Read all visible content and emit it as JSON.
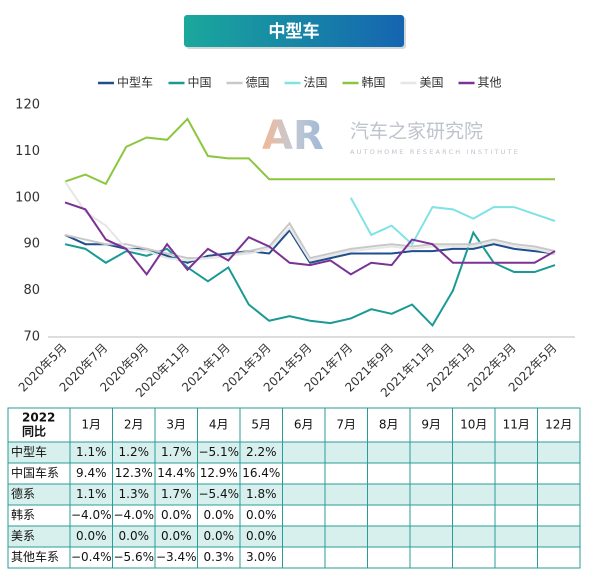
{
  "chart_data": {
    "type": "line",
    "title": "中型车",
    "categories": [
      "2020年5月",
      null,
      "2020年7月",
      null,
      "2020年9月",
      null,
      "2020年11月",
      null,
      "2021年1月",
      null,
      "2021年3月",
      null,
      "2021年5月",
      null,
      "2021年7月",
      null,
      "2021年9月",
      null,
      "2021年11月",
      null,
      "2022年1月",
      null,
      "2022年3月",
      null,
      "2022年5月"
    ],
    "series": [
      {
        "name": "中型车",
        "color": "#1f4e8c",
        "values": [
          92,
          90,
          90,
          89,
          89,
          87.5,
          86,
          87.5,
          88,
          88.5,
          88,
          93,
          86,
          87,
          88,
          88,
          88,
          88.5,
          88.5,
          89,
          89,
          90,
          89,
          88.5,
          88
        ]
      },
      {
        "name": "中国",
        "color": "#1a9a95",
        "values": [
          90,
          89,
          86,
          88.5,
          87.5,
          89,
          85,
          82,
          85,
          77,
          73.5,
          74.5,
          73.5,
          73,
          74,
          76,
          75,
          77,
          72.5,
          80,
          92.5,
          86,
          84,
          84,
          85.5
        ]
      },
      {
        "name": "德国",
        "color": "#c8c8c8",
        "values": [
          92,
          91,
          90,
          90,
          89,
          88,
          87,
          87,
          87.5,
          88.5,
          89.5,
          94.5,
          87,
          88,
          89,
          89.5,
          90,
          89.5,
          90,
          90,
          90,
          91,
          90,
          89.5,
          88.5
        ]
      },
      {
        "name": "法国",
        "color": "#7fe3e6",
        "values": [
          null,
          null,
          null,
          null,
          null,
          null,
          null,
          null,
          null,
          null,
          null,
          null,
          null,
          null,
          100,
          92,
          94,
          90,
          98,
          97.5,
          95.5,
          98,
          98,
          96.5,
          95
        ]
      },
      {
        "name": "韩国",
        "color": "#8cc63f",
        "values": [
          103.5,
          105,
          103,
          111,
          113,
          112.5,
          117,
          109,
          108.5,
          108.5,
          104,
          104,
          104,
          104,
          104,
          104,
          104,
          104,
          104,
          104,
          104,
          104,
          104,
          104,
          104
        ]
      },
      {
        "name": "美国",
        "color": "#e6e6e6",
        "values": [
          103.5,
          97,
          94,
          89,
          88.5,
          87,
          86.5,
          87,
          87.5,
          88,
          89,
          93.5,
          86.5,
          87.5,
          88.5,
          89,
          89.5,
          89,
          89.5,
          89.5,
          89.5,
          90.5,
          89.5,
          89,
          88
        ]
      },
      {
        "name": "其他",
        "color": "#7b3294",
        "values": [
          99,
          97.5,
          91,
          89,
          83.5,
          90,
          84.5,
          89,
          86.5,
          91.5,
          89.5,
          86,
          85.5,
          86.5,
          83.5,
          86,
          85.5,
          91,
          90,
          86,
          86,
          86,
          86,
          86,
          88.5
        ]
      }
    ],
    "ylim": [
      70,
      120
    ],
    "yticks": [
      70,
      80,
      90,
      100,
      110,
      120
    ]
  },
  "watermark": {
    "logo": "AR",
    "name": "汽车之家研究院",
    "subtitle": "AUTOHOME RESEARCH INSTITUTE"
  },
  "table": {
    "corner": [
      "2022",
      "同比"
    ],
    "columns": [
      "1月",
      "2月",
      "3月",
      "4月",
      "5月",
      "6月",
      "7月",
      "8月",
      "9月",
      "10月",
      "11月",
      "12月"
    ],
    "rows": [
      {
        "label": "中型车",
        "cells": [
          "1.1%",
          "1.2%",
          "1.7%",
          "−5.1%",
          "2.2%"
        ]
      },
      {
        "label": "中国车系",
        "cells": [
          "9.4%",
          "12.3%",
          "14.4%",
          "12.9%",
          "16.4%"
        ]
      },
      {
        "label": "德系",
        "cells": [
          "1.1%",
          "1.3%",
          "1.7%",
          "−5.4%",
          "1.8%"
        ]
      },
      {
        "label": "韩系",
        "cells": [
          "−4.0%",
          "−4.0%",
          "0.0%",
          "0.0%",
          "0.0%"
        ]
      },
      {
        "label": "美系",
        "cells": [
          "0.0%",
          "0.0%",
          "0.0%",
          "0.0%",
          "0.0%"
        ]
      },
      {
        "label": "其他车系",
        "cells": [
          "−0.4%",
          "−5.6%",
          "−3.4%",
          "0.3%",
          "3.0%"
        ]
      }
    ]
  }
}
